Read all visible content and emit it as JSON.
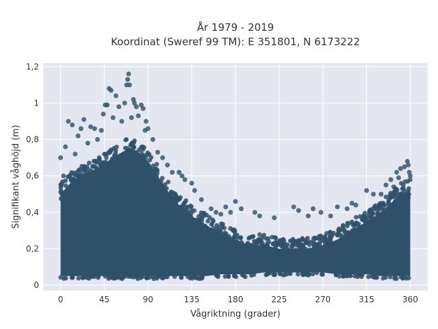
{
  "chart_data": {
    "type": "scatter",
    "title": "År 1979 - 2019",
    "subtitle": "Koordinat (Sweref 99 TM): E 351801, N 6173222",
    "xlabel": "Vågriktning (grader)",
    "ylabel": "Signifikant våghöjd (m)",
    "xlim": [
      -18,
      378
    ],
    "ylim": [
      -0.03,
      1.22
    ],
    "x_ticks": [
      0,
      45,
      90,
      135,
      180,
      225,
      270,
      315,
      360
    ],
    "x_tick_labels": [
      "0",
      "45",
      "90",
      "135",
      "180",
      "225",
      "270",
      "315",
      "360"
    ],
    "y_ticks": [
      0,
      0.2,
      0.4,
      0.6,
      0.8,
      1.0,
      1.2
    ],
    "y_tick_labels": [
      "0",
      "0,2",
      "0,4",
      "0,6",
      "0,8",
      "1",
      "1,2"
    ],
    "grid": true,
    "marker_color": "#2e5068",
    "background_color": "#e5e7f0",
    "envelope": {
      "direction": [
        0,
        10,
        20,
        30,
        40,
        50,
        60,
        70,
        80,
        90,
        100,
        110,
        120,
        135,
        150,
        165,
        180,
        195,
        210,
        225,
        240,
        255,
        270,
        285,
        300,
        315,
        330,
        340,
        350,
        360
      ],
      "min_height": [
        0.05,
        0.05,
        0.05,
        0.05,
        0.05,
        0.05,
        0.05,
        0.05,
        0.05,
        0.05,
        0.05,
        0.05,
        0.05,
        0.05,
        0.05,
        0.06,
        0.06,
        0.06,
        0.07,
        0.07,
        0.07,
        0.07,
        0.07,
        0.06,
        0.06,
        0.06,
        0.05,
        0.05,
        0.05,
        0.05
      ],
      "dense_max_height": [
        0.5,
        0.56,
        0.6,
        0.62,
        0.65,
        0.68,
        0.72,
        0.75,
        0.73,
        0.68,
        0.6,
        0.52,
        0.45,
        0.38,
        0.33,
        0.28,
        0.25,
        0.22,
        0.22,
        0.2,
        0.2,
        0.2,
        0.22,
        0.25,
        0.3,
        0.35,
        0.4,
        0.45,
        0.5,
        0.52
      ]
    },
    "outliers": [
      {
        "x": 0,
        "y": 0.7
      },
      {
        "x": 3,
        "y": 0.6
      },
      {
        "x": 5,
        "y": 0.76
      },
      {
        "x": 8,
        "y": 0.9
      },
      {
        "x": 12,
        "y": 0.88
      },
      {
        "x": 15,
        "y": 0.72
      },
      {
        "x": 18,
        "y": 0.82
      },
      {
        "x": 21,
        "y": 0.86
      },
      {
        "x": 24,
        "y": 0.91
      },
      {
        "x": 28,
        "y": 0.78
      },
      {
        "x": 31,
        "y": 0.87
      },
      {
        "x": 35,
        "y": 0.86
      },
      {
        "x": 38,
        "y": 0.8
      },
      {
        "x": 42,
        "y": 0.85
      },
      {
        "x": 44,
        "y": 0.94
      },
      {
        "x": 46,
        "y": 0.99
      },
      {
        "x": 48,
        "y": 0.99
      },
      {
        "x": 50,
        "y": 1.08
      },
      {
        "x": 52,
        "y": 1.07
      },
      {
        "x": 54,
        "y": 0.92
      },
      {
        "x": 57,
        "y": 1.04
      },
      {
        "x": 60,
        "y": 0.98
      },
      {
        "x": 63,
        "y": 0.9
      },
      {
        "x": 66,
        "y": 1.0
      },
      {
        "x": 68,
        "y": 1.1
      },
      {
        "x": 69,
        "y": 1.13
      },
      {
        "x": 70,
        "y": 1.16
      },
      {
        "x": 71,
        "y": 1.1
      },
      {
        "x": 73,
        "y": 0.92
      },
      {
        "x": 75,
        "y": 1.02
      },
      {
        "x": 76,
        "y": 1.0
      },
      {
        "x": 78,
        "y": 0.98
      },
      {
        "x": 80,
        "y": 0.93
      },
      {
        "x": 83,
        "y": 0.99
      },
      {
        "x": 85,
        "y": 0.97
      },
      {
        "x": 87,
        "y": 0.85
      },
      {
        "x": 88,
        "y": 0.9
      },
      {
        "x": 90,
        "y": 0.86
      },
      {
        "x": 95,
        "y": 0.8
      },
      {
        "x": 100,
        "y": 0.73
      },
      {
        "x": 105,
        "y": 0.7
      },
      {
        "x": 110,
        "y": 0.66
      },
      {
        "x": 115,
        "y": 0.62
      },
      {
        "x": 122,
        "y": 0.62
      },
      {
        "x": 125,
        "y": 0.6
      },
      {
        "x": 128,
        "y": 0.58
      },
      {
        "x": 135,
        "y": 0.56
      },
      {
        "x": 138,
        "y": 0.52
      },
      {
        "x": 145,
        "y": 0.47
      },
      {
        "x": 155,
        "y": 0.42
      },
      {
        "x": 160,
        "y": 0.4
      },
      {
        "x": 165,
        "y": 0.39
      },
      {
        "x": 170,
        "y": 0.43
      },
      {
        "x": 175,
        "y": 0.4
      },
      {
        "x": 180,
        "y": 0.46
      },
      {
        "x": 186,
        "y": 0.42
      },
      {
        "x": 200,
        "y": 0.4
      },
      {
        "x": 205,
        "y": 0.38
      },
      {
        "x": 220,
        "y": 0.37
      },
      {
        "x": 240,
        "y": 0.43
      },
      {
        "x": 245,
        "y": 0.41
      },
      {
        "x": 255,
        "y": 0.38
      },
      {
        "x": 260,
        "y": 0.42
      },
      {
        "x": 268,
        "y": 0.4
      },
      {
        "x": 278,
        "y": 0.38
      },
      {
        "x": 285,
        "y": 0.43
      },
      {
        "x": 295,
        "y": 0.42
      },
      {
        "x": 300,
        "y": 0.45
      },
      {
        "x": 304,
        "y": 0.44
      },
      {
        "x": 315,
        "y": 0.52
      },
      {
        "x": 322,
        "y": 0.5
      },
      {
        "x": 330,
        "y": 0.5
      },
      {
        "x": 335,
        "y": 0.55
      },
      {
        "x": 340,
        "y": 0.58
      },
      {
        "x": 343,
        "y": 0.54
      },
      {
        "x": 346,
        "y": 0.62
      },
      {
        "x": 348,
        "y": 0.59
      },
      {
        "x": 350,
        "y": 0.64
      },
      {
        "x": 354,
        "y": 0.65
      },
      {
        "x": 357,
        "y": 0.68
      },
      {
        "x": 358,
        "y": 0.66
      },
      {
        "x": 359,
        "y": 0.62
      },
      {
        "x": 360,
        "y": 0.6
      }
    ]
  }
}
